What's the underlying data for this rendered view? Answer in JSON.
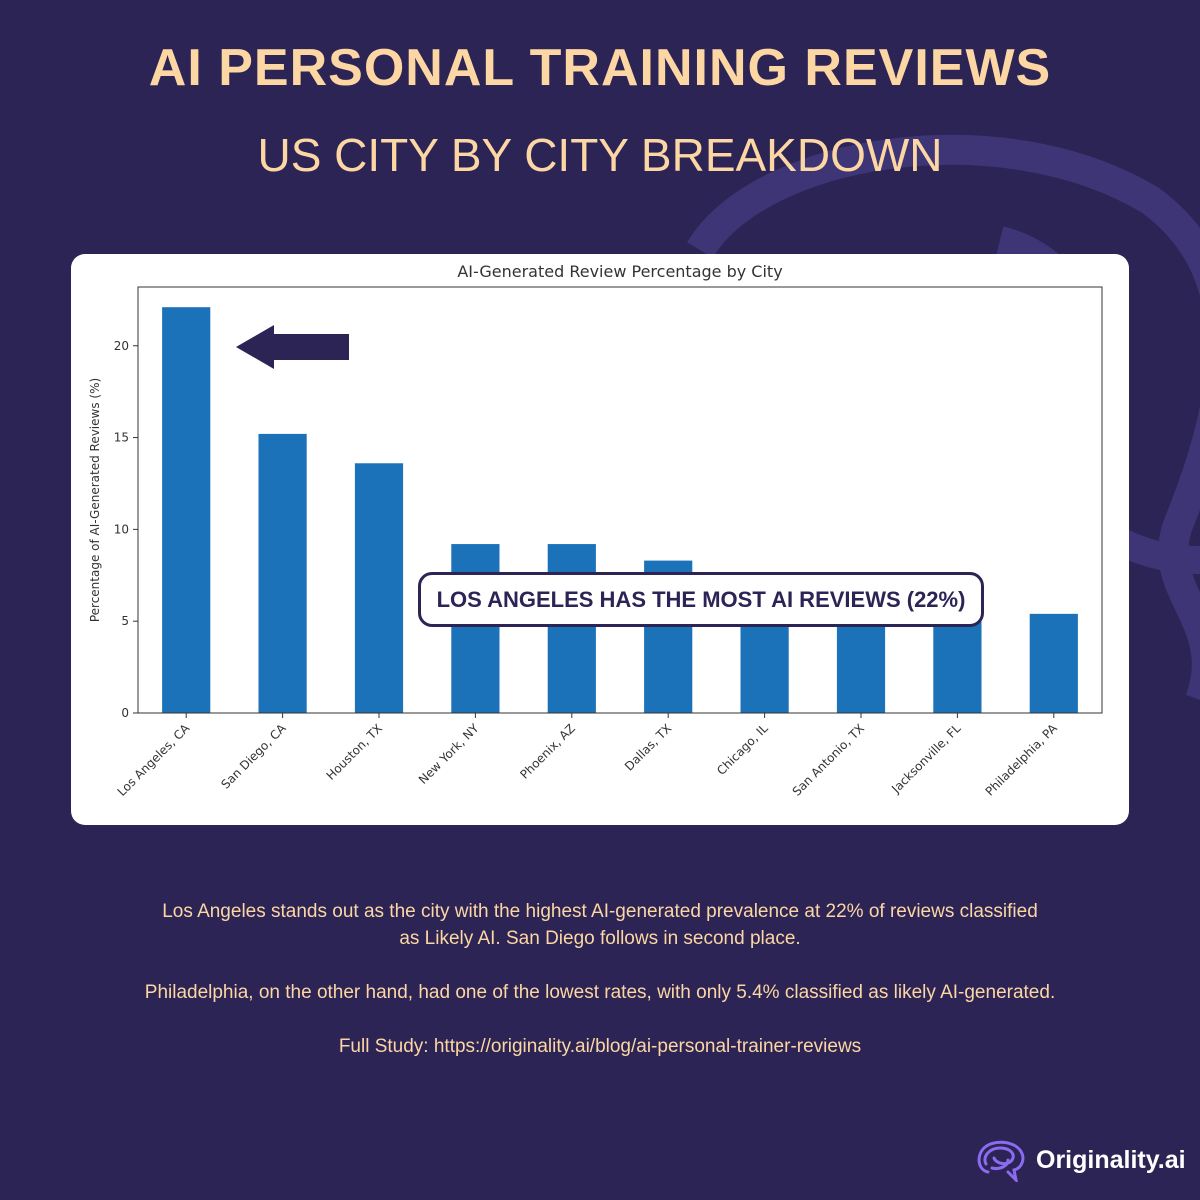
{
  "header": {
    "title": "AI PERSONAL TRAINING REVIEWS",
    "subtitle": "US CITY BY CITY BREAKDOWN"
  },
  "callout": {
    "text": "LOS ANGELES HAS THE MOST AI REVIEWS (22%)"
  },
  "description": {
    "line1": "Los Angeles stands out as the city with the highest AI-generated prevalence at 22% of reviews classified",
    "line2": "as Likely AI. San Diego follows in second place.",
    "line3": "Philadelphia, on the other hand, had one of the lowest rates, with only 5.4% classified as likely AI-generated.",
    "line4": "Full Study: https://originality.ai/blog/ai-personal-trainer-reviews"
  },
  "logo": {
    "text": "Originality.ai",
    "icon": "brain-icon"
  },
  "colors": {
    "background": "#2c2455",
    "accent": "#fcd6a3",
    "bar": "#1b72b8"
  },
  "chart_data": {
    "type": "bar",
    "title": "AI-Generated Review Percentage by City",
    "xlabel": "",
    "ylabel": "Percentage of AI-Generated Reviews (%)",
    "categories": [
      "Los Angeles, CA",
      "San Diego, CA",
      "Houston, TX",
      "New York, NY",
      "Phoenix, AZ",
      "Dallas, TX",
      "Chicago, IL",
      "San Antonio, TX",
      "Jacksonville, FL",
      "Philadelphia, PA"
    ],
    "values": [
      22.1,
      15.2,
      13.6,
      9.2,
      9.2,
      8.3,
      7.4,
      7.1,
      7.0,
      5.4
    ],
    "ylim": [
      0,
      23.2
    ],
    "yticks": [
      0,
      5,
      10,
      15,
      20
    ],
    "grid": false,
    "legend": "none"
  }
}
